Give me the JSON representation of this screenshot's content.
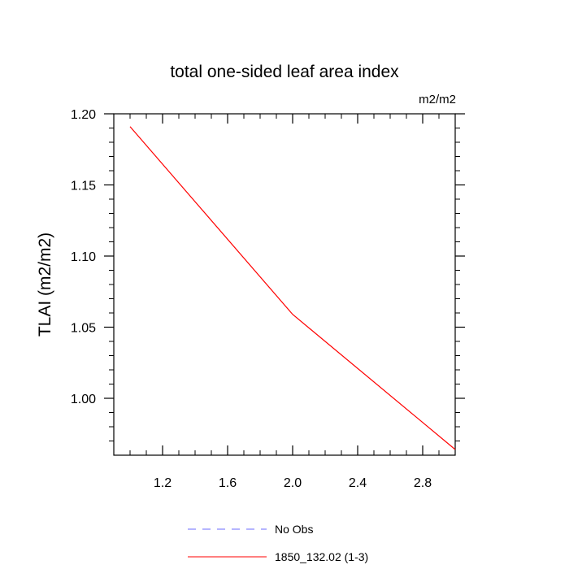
{
  "chart_data": {
    "type": "line",
    "title": "total one-sided leaf area index",
    "units_label": "m2/m2",
    "ylabel": "TLAI  (m2/m2)",
    "xlabel": "",
    "xlim": [
      0.9,
      3.0
    ],
    "ylim": [
      0.96,
      1.2
    ],
    "x_ticks": [
      1.2,
      1.6,
      2.0,
      2.4,
      2.8
    ],
    "x_tick_labels": [
      "1.2",
      "1.6",
      "2.0",
      "2.4",
      "2.8"
    ],
    "y_ticks": [
      1.0,
      1.05,
      1.1,
      1.15,
      1.2
    ],
    "y_tick_labels": [
      "1.00",
      "1.05",
      "1.10",
      "1.15",
      "1.20"
    ],
    "grid": false,
    "legend_position": "bottom",
    "series": [
      {
        "name": "1850_132.02 (1-3)",
        "color": "#ff0000",
        "dash": "solid",
        "x": [
          1.0,
          2.0,
          3.0
        ],
        "y": [
          1.191,
          1.059,
          0.964
        ]
      }
    ],
    "legend": [
      {
        "label": "No Obs",
        "color": "#6b6bff",
        "dash": "dashed"
      },
      {
        "label": "1850_132.02 (1-3)",
        "color": "#ff0000",
        "dash": "solid"
      }
    ]
  }
}
